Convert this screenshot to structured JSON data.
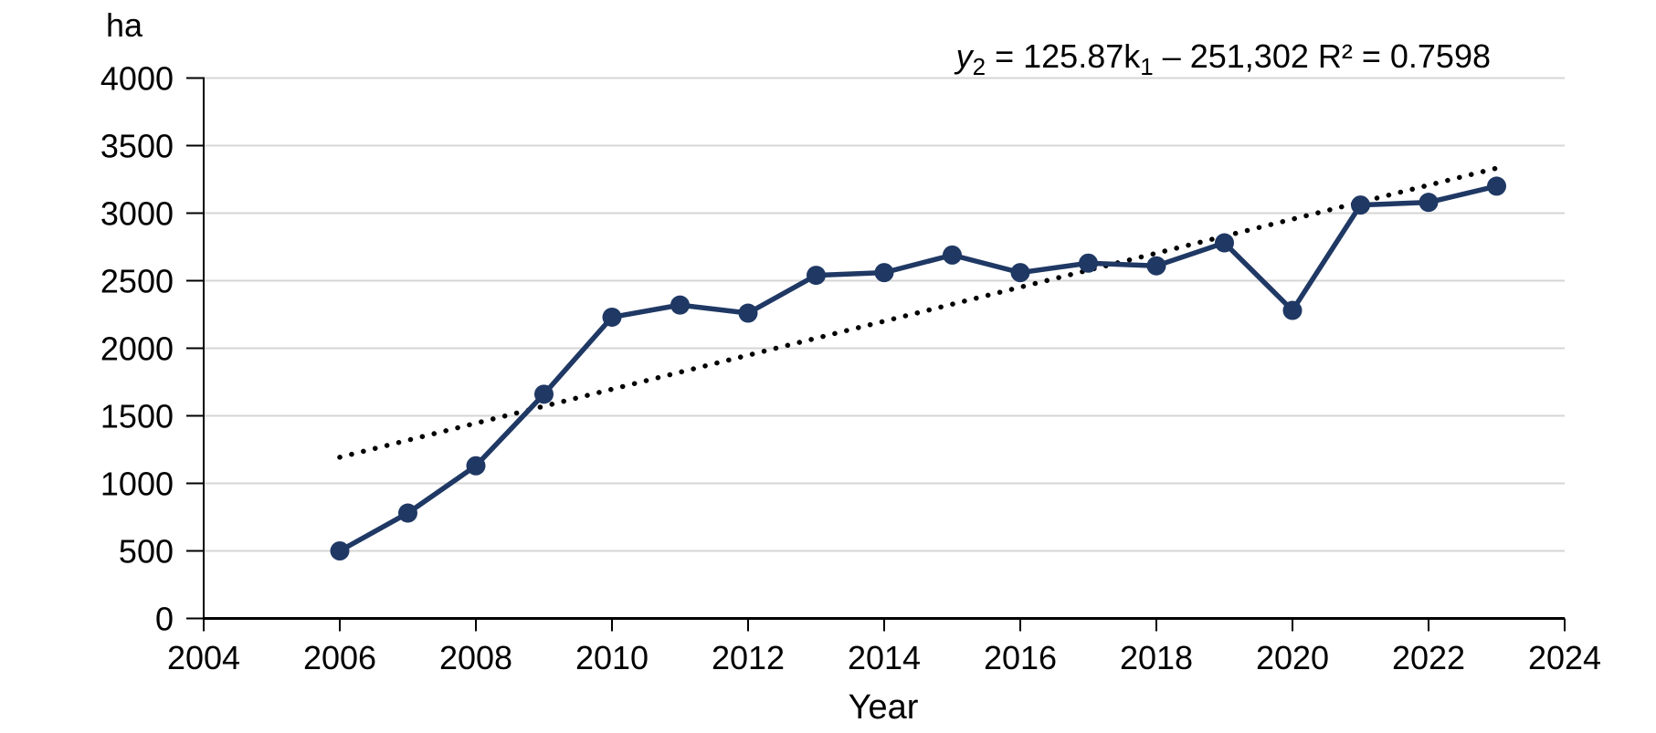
{
  "chart": {
    "unit_label": "ha",
    "x_axis_title": "Year",
    "equation": {
      "lhs": "y",
      "lhs_sub": "2",
      "mid": " = 125.87k",
      "k_sub": "1",
      "tail": " – 251,302 R² = 0.7598"
    }
  },
  "chart_data": {
    "type": "line",
    "title": "",
    "ylabel": "ha",
    "xlabel": "Year",
    "x": [
      2006,
      2007,
      2008,
      2009,
      2010,
      2011,
      2012,
      2013,
      2014,
      2015,
      2016,
      2017,
      2018,
      2019,
      2020,
      2021,
      2022,
      2023
    ],
    "values": [
      500,
      780,
      1130,
      1660,
      2230,
      2320,
      2260,
      2540,
      2560,
      2690,
      2560,
      2630,
      2610,
      2780,
      2280,
      3060,
      3080,
      3200
    ],
    "xlim": [
      2004,
      2024
    ],
    "ylim": [
      0,
      4000
    ],
    "x_ticks": [
      2004,
      2006,
      2008,
      2010,
      2012,
      2014,
      2016,
      2018,
      2020,
      2022,
      2024
    ],
    "y_ticks": [
      0,
      500,
      1000,
      1500,
      2000,
      2500,
      3000,
      3500,
      4000
    ],
    "grid": "horizontal",
    "legend": "none",
    "series_color": "#1f3864",
    "gridline_color": "#d6d6d6",
    "axis_color": "#000000",
    "marker": "circle",
    "trendline": {
      "style": "dotted",
      "color": "#000000",
      "slope": 125.87,
      "intercept": -251302,
      "x_start": 2006,
      "x_end": 2023,
      "equation_text": "y₂ = 125.87k₁ – 251,302",
      "r_squared": 0.7598
    }
  }
}
